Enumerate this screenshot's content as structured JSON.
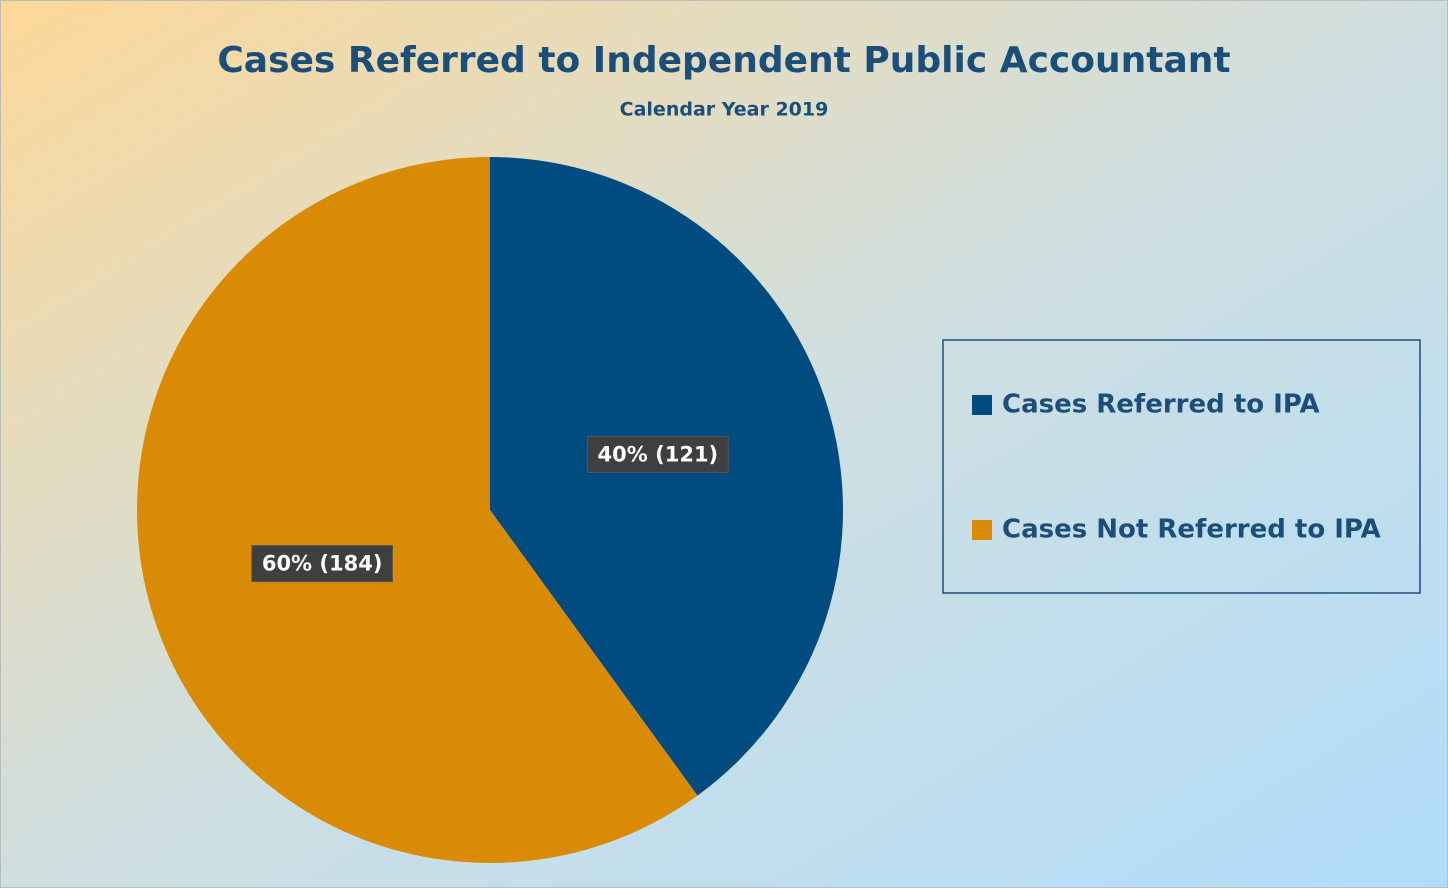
{
  "chart_data": {
    "type": "pie",
    "title": "Cases Referred to Independent Public Accountant",
    "subtitle": "Calendar Year 2019",
    "categories": [
      "Cases Referred to IPA",
      "Cases Not Referred to IPA"
    ],
    "values": [
      40,
      60
    ],
    "value_labels": [
      "40% (121)",
      "60% (184)"
    ],
    "colors": [
      "#004c80",
      "#d98b06"
    ],
    "legend": "right"
  }
}
